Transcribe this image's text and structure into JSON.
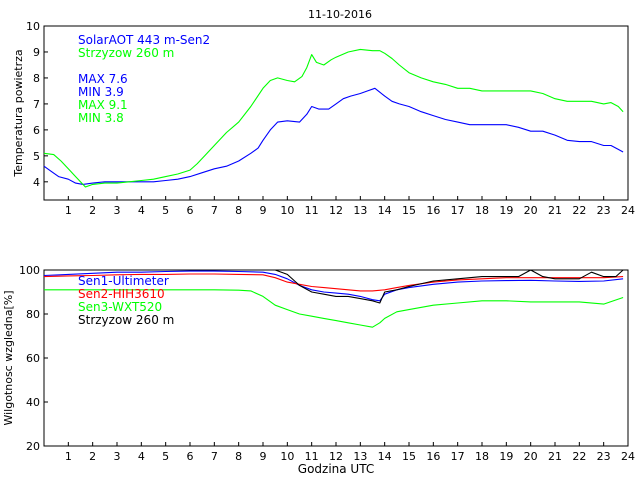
{
  "title": "11-10-2016",
  "colors": {
    "blue": "#0000ff",
    "green": "#00ff00",
    "red": "#ff0000",
    "black": "#000000"
  },
  "chart_data": [
    {
      "type": "line",
      "ylabel": "Temperatura powietrza",
      "xlabel": "",
      "xlim": [
        0,
        24
      ],
      "ylim": [
        3.3,
        10
      ],
      "xticks": [
        1,
        2,
        3,
        4,
        5,
        6,
        7,
        8,
        9,
        10,
        11,
        12,
        13,
        14,
        15,
        16,
        17,
        18,
        19,
        20,
        21,
        22,
        23,
        24
      ],
      "yticks": [
        4,
        5,
        6,
        7,
        8,
        9,
        10
      ],
      "legend": [
        {
          "text": "SolarAOT 443 m-Sen2",
          "color": "#0000ff"
        },
        {
          "text": "Strzyzow 260 m",
          "color": "#00ff00"
        }
      ],
      "stats": [
        {
          "text": "MAX 7.6",
          "color": "#0000ff"
        },
        {
          "text": "MIN 3.9",
          "color": "#0000ff"
        },
        {
          "text": "MAX 9.1",
          "color": "#00ff00"
        },
        {
          "text": "MIN 3.8",
          "color": "#00ff00"
        }
      ],
      "series": [
        {
          "name": "SolarAOT 443 m-Sen2",
          "color": "#0000ff",
          "x": [
            0,
            0.3,
            0.6,
            1,
            1.3,
            1.6,
            2,
            2.5,
            3,
            3.5,
            4,
            4.5,
            5,
            5.5,
            6,
            6.5,
            7,
            7.5,
            8,
            8.5,
            8.8,
            9,
            9.3,
            9.6,
            10,
            10.5,
            10.8,
            11,
            11.3,
            11.7,
            12,
            12.3,
            12.6,
            13,
            13.3,
            13.6,
            13.8,
            14,
            14.3,
            14.6,
            15,
            15.5,
            16,
            16.5,
            17,
            17.5,
            18,
            18.5,
            19,
            19.5,
            20,
            20.5,
            21,
            21.5,
            22,
            22.5,
            23,
            23.3,
            23.6,
            23.8
          ],
          "values": [
            4.6,
            4.4,
            4.2,
            4.1,
            3.95,
            3.9,
            3.95,
            4.0,
            4.0,
            4.0,
            4.0,
            4.0,
            4.05,
            4.1,
            4.2,
            4.35,
            4.5,
            4.6,
            4.8,
            5.1,
            5.3,
            5.6,
            6.0,
            6.3,
            6.35,
            6.3,
            6.6,
            6.9,
            6.8,
            6.8,
            7.0,
            7.2,
            7.3,
            7.4,
            7.5,
            7.6,
            7.45,
            7.3,
            7.1,
            7.0,
            6.9,
            6.7,
            6.55,
            6.4,
            6.3,
            6.2,
            6.2,
            6.2,
            6.2,
            6.1,
            5.95,
            5.95,
            5.8,
            5.6,
            5.55,
            5.55,
            5.4,
            5.4,
            5.25,
            5.15
          ]
        },
        {
          "name": "Strzyzow 260 m",
          "color": "#00ff00",
          "x": [
            0,
            0.4,
            0.7,
            1,
            1.3,
            1.7,
            2,
            2.5,
            3,
            3.5,
            4,
            4.5,
            5,
            5.5,
            6,
            6.3,
            6.6,
            7,
            7.5,
            8,
            8.5,
            9,
            9.3,
            9.6,
            10,
            10.3,
            10.6,
            10.8,
            11,
            11.2,
            11.5,
            11.8,
            12,
            12.5,
            13,
            13.5,
            13.8,
            14,
            14.3,
            14.6,
            15,
            15.5,
            16,
            16.5,
            17,
            17.5,
            18,
            18.5,
            19,
            19.5,
            20,
            20.5,
            21,
            21.5,
            22,
            22.5,
            23,
            23.3,
            23.6,
            23.8
          ],
          "values": [
            5.1,
            5.05,
            4.8,
            4.5,
            4.2,
            3.8,
            3.9,
            3.95,
            3.95,
            4.0,
            4.05,
            4.1,
            4.2,
            4.3,
            4.45,
            4.7,
            5.0,
            5.4,
            5.9,
            6.3,
            6.9,
            7.6,
            7.9,
            8.0,
            7.9,
            7.85,
            8.05,
            8.4,
            8.9,
            8.6,
            8.5,
            8.7,
            8.8,
            9.0,
            9.1,
            9.05,
            9.05,
            8.95,
            8.75,
            8.5,
            8.2,
            8.0,
            7.85,
            7.75,
            7.6,
            7.6,
            7.5,
            7.5,
            7.5,
            7.5,
            7.5,
            7.4,
            7.2,
            7.1,
            7.1,
            7.1,
            7.0,
            7.05,
            6.9,
            6.7
          ]
        }
      ]
    },
    {
      "type": "line",
      "ylabel": "Wilgotnosc wzgledna[%]",
      "xlabel": "Godzina UTC",
      "xlim": [
        0,
        24
      ],
      "ylim": [
        20,
        100
      ],
      "xticks": [
        1,
        2,
        3,
        4,
        5,
        6,
        7,
        8,
        9,
        10,
        11,
        12,
        13,
        14,
        15,
        16,
        17,
        18,
        19,
        20,
        21,
        22,
        23,
        24
      ],
      "yticks": [
        20,
        40,
        60,
        80,
        100
      ],
      "legend": [
        {
          "text": "Sen1-Ultimeter",
          "color": "#0000ff"
        },
        {
          "text": "Sen2-HIH3610",
          "color": "#ff0000"
        },
        {
          "text": "Sen3-WXT520",
          "color": "#00ff00"
        },
        {
          "text": "Strzyzow 260 m",
          "color": "#000000"
        }
      ],
      "series": [
        {
          "name": "Sen1-Ultimeter",
          "color": "#0000ff",
          "x": [
            0,
            1,
            2,
            3,
            4,
            5,
            6,
            7,
            8,
            9,
            9.5,
            10,
            10.5,
            11,
            11.5,
            12,
            12.5,
            13,
            13.5,
            13.8,
            14,
            14.5,
            15,
            16,
            17,
            18,
            19,
            20,
            21,
            22,
            23,
            23.8
          ],
          "values": [
            97.5,
            98,
            98.5,
            99,
            99,
            99.3,
            99.5,
            99.5,
            99.3,
            99,
            98,
            96,
            93,
            91,
            90,
            89.5,
            89,
            88,
            86.5,
            86,
            89,
            91,
            92,
            93.5,
            94.5,
            95,
            95.2,
            95.3,
            95,
            94.8,
            95,
            96
          ]
        },
        {
          "name": "Sen2-HIH3610",
          "color": "#ff0000",
          "x": [
            0,
            1,
            2,
            3,
            4,
            5,
            6,
            7,
            8,
            9,
            9.5,
            10,
            10.5,
            11,
            11.5,
            12,
            12.5,
            13,
            13.5,
            14,
            14.5,
            15,
            16,
            17,
            18,
            19,
            20,
            21,
            22,
            23,
            23.8
          ],
          "values": [
            97,
            97.3,
            97.5,
            97.8,
            98,
            98,
            98.2,
            98.2,
            98,
            97.8,
            96.5,
            94.5,
            93.5,
            92.5,
            92,
            91.5,
            91,
            90.5,
            90.5,
            91,
            92,
            93,
            94.5,
            95.5,
            96,
            96.5,
            96.5,
            96.5,
            96.5,
            96.5,
            97
          ]
        },
        {
          "name": "Sen3-WXT520",
          "color": "#00ff00",
          "x": [
            0,
            1,
            2,
            3,
            4,
            5,
            6,
            7,
            8,
            8.5,
            9,
            9.5,
            10,
            10.5,
            11,
            11.5,
            12,
            12.5,
            13,
            13.5,
            13.8,
            14,
            14.5,
            15,
            16,
            17,
            18,
            19,
            20,
            21,
            22,
            23,
            23.8
          ],
          "values": [
            91,
            91,
            91,
            91,
            91,
            91,
            91,
            91,
            90.8,
            90.5,
            88,
            84,
            82,
            80,
            79,
            78,
            77,
            76,
            75,
            74,
            76,
            78,
            81,
            82,
            84,
            85,
            86,
            86,
            85.5,
            85.5,
            85.5,
            84.5,
            87.5
          ]
        },
        {
          "name": "Strzyzow 260 m",
          "color": "#000000",
          "x": [
            9.5,
            10,
            10.5,
            11,
            11.5,
            12,
            12.5,
            13,
            13.5,
            13.8,
            14,
            14.5,
            15,
            16,
            17,
            18,
            19,
            19.5,
            20,
            20.5,
            21,
            22,
            22.5,
            23,
            23.5,
            23.8
          ],
          "values": [
            100,
            98,
            93,
            90,
            89,
            88,
            88,
            87,
            86,
            85,
            90,
            91,
            92.5,
            95,
            96,
            97,
            97,
            97,
            100,
            97,
            96,
            96,
            99,
            97,
            97,
            100
          ]
        }
      ]
    }
  ]
}
